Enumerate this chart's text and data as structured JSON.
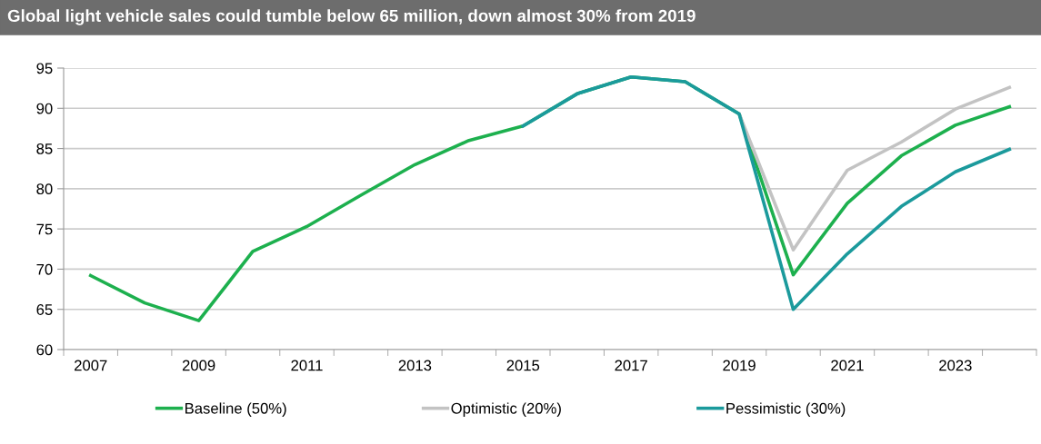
{
  "chart_data": {
    "type": "line",
    "title": "Global light vehicle sales could tumble below 65 million, down almost 30% from 2019",
    "categories": [
      "2007",
      null,
      "2009",
      null,
      "2011",
      null,
      "2013",
      null,
      "2015",
      null,
      "2017",
      null,
      "2019",
      null,
      "2021",
      null,
      "2023",
      null
    ],
    "series": [
      {
        "name": "Baseline (50%)",
        "color": "#1db04e",
        "values": [
          69.2,
          65.8,
          63.6,
          72.2,
          75.3,
          79.2,
          83.0,
          86.0,
          87.8,
          91.8,
          93.9,
          93.3,
          89.3,
          69.3,
          78.2,
          84.1,
          87.9,
          90.2
        ]
      },
      {
        "name": "Optimistic (20%)",
        "color": "#c3c3c3",
        "values": [
          null,
          null,
          null,
          null,
          null,
          null,
          null,
          null,
          null,
          null,
          null,
          null,
          89.3,
          72.4,
          82.3,
          85.8,
          89.9,
          92.6
        ]
      },
      {
        "name": "Pessimistic (30%)",
        "color": "#1b9a9c",
        "values": [
          null,
          null,
          null,
          null,
          null,
          null,
          null,
          null,
          87.8,
          91.8,
          93.9,
          93.3,
          89.3,
          65.0,
          71.9,
          77.8,
          82.1,
          84.9
        ]
      }
    ],
    "ylim": [
      60,
      95
    ],
    "yticks": [
      60,
      65,
      70,
      75,
      80,
      85,
      90,
      95
    ],
    "grid": "y",
    "legend": "bottom",
    "marker": "none",
    "line_style": "solid"
  }
}
